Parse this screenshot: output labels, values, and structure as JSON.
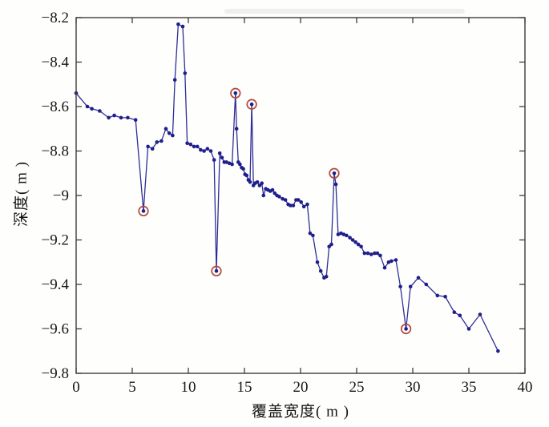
{
  "figure": {
    "background": "#fefefd"
  },
  "chart_data": {
    "type": "line",
    "title": "",
    "xlabel": "覆盖宽度( m )",
    "ylabel": "深度( m )",
    "xlim": [
      0,
      40
    ],
    "ylim": [
      -9.8,
      -8.2
    ],
    "grid": false,
    "legend": null,
    "marker": "dot",
    "outlier_marker": "red-circle-ring",
    "colors": {
      "line": "#2e2e96",
      "marker": "#1e1e8c",
      "outlier_ring": "#b5483a",
      "axis": "#3c3c3c",
      "tick_text": "#161616"
    },
    "xticks": {
      "values": [
        0,
        5,
        10,
        15,
        20,
        25,
        30,
        35,
        40
      ],
      "labels": [
        "0",
        "5",
        "10",
        "15",
        "20",
        "25",
        "30",
        "35",
        "40"
      ]
    },
    "yticks": {
      "values": [
        -8.2,
        -8.4,
        -8.6,
        -8.8,
        -9.0,
        -9.2,
        -9.4,
        -9.6,
        -9.8
      ],
      "labels": [
        "−8.2",
        "−8.4",
        "−8.6",
        "−8.8",
        "−9",
        "−9.2",
        "−9.4",
        "−9.6",
        "−9.8"
      ]
    },
    "x": [
      0.0,
      1.0,
      1.4,
      2.1,
      2.9,
      3.4,
      4.0,
      4.6,
      5.3,
      6.0,
      6.4,
      6.8,
      7.2,
      7.6,
      8.0,
      8.3,
      8.6,
      8.8,
      9.1,
      9.5,
      9.7,
      9.9,
      10.2,
      10.5,
      10.8,
      11.1,
      11.4,
      11.7,
      12.0,
      12.3,
      12.5,
      12.8,
      13.0,
      13.2,
      13.4,
      13.65,
      13.9,
      14.2,
      14.3,
      14.45,
      14.6,
      14.75,
      14.9,
      15.05,
      15.2,
      15.35,
      15.5,
      15.65,
      15.8,
      15.95,
      16.15,
      16.35,
      16.55,
      16.7,
      16.9,
      17.1,
      17.3,
      17.5,
      17.7,
      17.9,
      18.1,
      18.4,
      18.65,
      18.9,
      19.1,
      19.35,
      19.6,
      19.8,
      20.05,
      20.3,
      20.6,
      20.85,
      21.1,
      21.5,
      21.8,
      22.1,
      22.3,
      22.55,
      22.75,
      23.0,
      23.15,
      23.35,
      23.6,
      23.85,
      24.1,
      24.4,
      24.65,
      24.9,
      25.15,
      25.4,
      25.7,
      26.0,
      26.3,
      26.6,
      26.85,
      27.1,
      27.5,
      27.85,
      28.1,
      28.5,
      28.9,
      29.4,
      29.8,
      30.5,
      31.2,
      32.2,
      32.9,
      33.7,
      34.2,
      35.0,
      36.0,
      37.6
    ],
    "y": [
      -8.54,
      -8.6,
      -8.61,
      -8.62,
      -8.65,
      -8.64,
      -8.65,
      -8.65,
      -8.66,
      -9.07,
      -8.78,
      -8.79,
      -8.76,
      -8.755,
      -8.7,
      -8.72,
      -8.73,
      -8.48,
      -8.23,
      -8.24,
      -8.45,
      -8.765,
      -8.77,
      -8.78,
      -8.78,
      -8.795,
      -8.8,
      -8.79,
      -8.8,
      -8.84,
      -9.34,
      -8.81,
      -8.83,
      -8.85,
      -8.85,
      -8.855,
      -8.86,
      -8.54,
      -8.7,
      -8.85,
      -8.86,
      -8.875,
      -8.88,
      -8.905,
      -8.91,
      -8.93,
      -8.94,
      -8.59,
      -8.955,
      -8.945,
      -8.94,
      -8.955,
      -8.945,
      -9.0,
      -8.97,
      -8.975,
      -8.98,
      -8.975,
      -8.99,
      -9.0,
      -9.005,
      -9.015,
      -9.02,
      -9.04,
      -9.045,
      -9.045,
      -9.02,
      -9.02,
      -9.03,
      -9.05,
      -9.04,
      -9.17,
      -9.18,
      -9.3,
      -9.34,
      -9.37,
      -9.365,
      -9.23,
      -9.22,
      -8.9,
      -8.95,
      -9.175,
      -9.17,
      -9.175,
      -9.18,
      -9.19,
      -9.2,
      -9.21,
      -9.22,
      -9.23,
      -9.26,
      -9.26,
      -9.265,
      -9.26,
      -9.26,
      -9.27,
      -9.325,
      -9.3,
      -9.295,
      -9.29,
      -9.41,
      -9.6,
      -9.41,
      -9.37,
      -9.4,
      -9.45,
      -9.455,
      -9.525,
      -9.54,
      -9.6,
      -9.535,
      -9.7
    ],
    "outlier_indices": [
      9,
      30,
      37,
      47,
      79,
      101
    ],
    "outlier_points": [
      {
        "x": 6.0,
        "y": -9.07
      },
      {
        "x": 12.5,
        "y": -9.34
      },
      {
        "x": 14.2,
        "y": -8.54
      },
      {
        "x": 15.65,
        "y": -8.59
      },
      {
        "x": 23.0,
        "y": -8.9
      },
      {
        "x": 29.4,
        "y": -9.6
      }
    ]
  }
}
